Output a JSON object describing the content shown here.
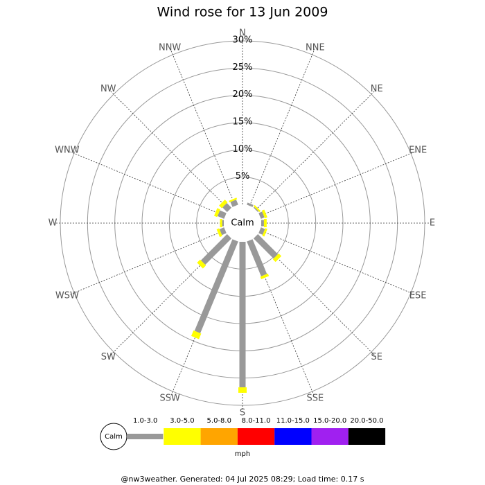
{
  "chart_data": {
    "type": "windrose",
    "title": "Wind rose for 13 Jun 2009",
    "categories": [
      "N",
      "NNE",
      "NE",
      "ENE",
      "E",
      "ESE",
      "SE",
      "SSE",
      "S",
      "SSW",
      "SW",
      "WSW",
      "W",
      "WNW",
      "NW",
      "NNW"
    ],
    "calm_label": "Calm",
    "unit_label": "mph",
    "footer": "@nw3weather. Generated: 04 Jul 2025 08:29; Load time: 0.17 s",
    "rlim": [
      0,
      30
    ],
    "rticks": [
      {
        "value": 5,
        "label": "5%"
      },
      {
        "value": 10,
        "label": "10%"
      },
      {
        "value": 15,
        "label": "15%"
      },
      {
        "value": 20,
        "label": "20%"
      },
      {
        "value": 25,
        "label": "25%"
      },
      {
        "value": 30,
        "label": "30%"
      }
    ],
    "series": [
      {
        "name": "1.0-3.0",
        "color": "#999999",
        "values": [
          0,
          0.4,
          0.2,
          0.7,
          0.5,
          0.8,
          5.2,
          6.9,
          26.7,
          18.2,
          6.8,
          0.9,
          0.3,
          1.3,
          1.2,
          1.0
        ]
      },
      {
        "name": "3.0-5.0",
        "color": "#ffff00",
        "values": [
          0,
          0,
          0.3,
          0.5,
          0.5,
          0.4,
          0.7,
          0.5,
          1.0,
          1.1,
          0.8,
          0.5,
          0.4,
          0.6,
          0.7,
          0.3
        ]
      },
      {
        "name": "5.0-8.0",
        "color": "#ffa500",
        "values": [
          0,
          0,
          0,
          0,
          0,
          0,
          0,
          0,
          0,
          0,
          0,
          0,
          0,
          0,
          0,
          0
        ]
      },
      {
        "name": "8.0-11.0",
        "color": "#ff0000",
        "values": [
          0,
          0,
          0,
          0,
          0,
          0,
          0,
          0,
          0,
          0,
          0,
          0,
          0,
          0,
          0,
          0
        ]
      },
      {
        "name": "11.0-15.0",
        "color": "#0000ff",
        "values": [
          0,
          0,
          0,
          0,
          0,
          0,
          0,
          0,
          0,
          0,
          0,
          0,
          0,
          0,
          0,
          0
        ]
      },
      {
        "name": "15.0-20.0",
        "color": "#a020f0",
        "values": [
          0,
          0,
          0,
          0,
          0,
          0,
          0,
          0,
          0,
          0,
          0,
          0,
          0,
          0,
          0,
          0
        ]
      },
      {
        "name": "20.0-50.0",
        "color": "#000000",
        "values": [
          0,
          0,
          0,
          0,
          0,
          0,
          0,
          0,
          0,
          0,
          0,
          0,
          0,
          0,
          0,
          0
        ]
      }
    ]
  }
}
